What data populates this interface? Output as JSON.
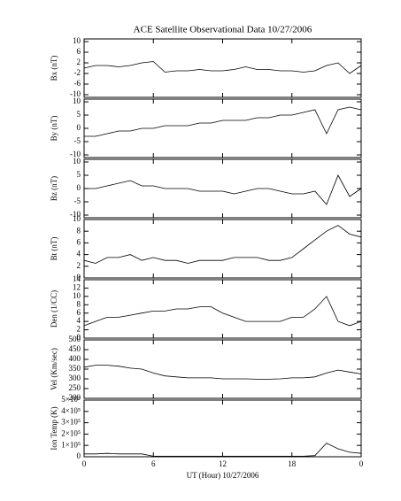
{
  "chart_data": [
    {
      "type": "line",
      "title": "ACE Satellite Observational Data   10/27/2006",
      "ylabel": "Bx (nT)",
      "xlim": [
        0,
        24
      ],
      "xticks": [
        0,
        6,
        12,
        18,
        {
          "value": 24,
          "label": "0"
        }
      ],
      "ylim": [
        -11,
        11
      ],
      "yticks": [
        -10,
        -6,
        -2,
        2,
        6,
        10
      ],
      "x": [
        0,
        1,
        2,
        3,
        4,
        5,
        6,
        7,
        8,
        9,
        10,
        11,
        12,
        13,
        14,
        15,
        16,
        17,
        18,
        19,
        20,
        21,
        22,
        23,
        24
      ],
      "values": [
        0,
        1,
        1,
        0.5,
        1,
        2,
        2.5,
        -1.5,
        -1,
        -1,
        -0.5,
        -1,
        -1,
        -0.5,
        0.5,
        -0.5,
        -0.5,
        -1,
        -1,
        -1.5,
        -1,
        1,
        2,
        -2,
        1
      ]
    },
    {
      "type": "line",
      "ylabel": "By (nT)",
      "xlim": [
        0,
        24
      ],
      "xticks": [
        0,
        6,
        12,
        18,
        {
          "value": 24,
          "label": "0"
        }
      ],
      "ylim": [
        -11,
        11
      ],
      "yticks": [
        -10,
        -5,
        0,
        5,
        10
      ],
      "x": [
        0,
        1,
        2,
        3,
        4,
        5,
        6,
        7,
        8,
        9,
        10,
        11,
        12,
        13,
        14,
        15,
        16,
        17,
        18,
        19,
        20,
        21,
        22,
        23,
        24
      ],
      "values": [
        -3,
        -3,
        -2,
        -1,
        -1,
        0,
        0,
        1,
        1,
        1,
        2,
        2,
        3,
        3,
        3,
        4,
        4,
        5,
        5,
        6,
        7,
        -2,
        7,
        8,
        7
      ]
    },
    {
      "type": "line",
      "ylabel": "Bz (nT)",
      "xlim": [
        0,
        24
      ],
      "xticks": [
        0,
        6,
        12,
        18,
        {
          "value": 24,
          "label": "0"
        }
      ],
      "ylim": [
        -11,
        11
      ],
      "yticks": [
        -10,
        -5,
        0,
        5,
        10
      ],
      "x": [
        0,
        1,
        2,
        3,
        4,
        5,
        6,
        7,
        8,
        9,
        10,
        11,
        12,
        13,
        14,
        15,
        16,
        17,
        18,
        19,
        20,
        21,
        22,
        23,
        24
      ],
      "values": [
        0,
        0,
        1,
        2,
        3,
        1,
        1,
        0,
        0,
        0,
        -1,
        -1,
        -1,
        -2,
        -1,
        0,
        0,
        -1,
        -2,
        -2,
        -1,
        -6,
        5,
        -3,
        0
      ]
    },
    {
      "type": "line",
      "ylabel": "Bt (nT)",
      "xlim": [
        0,
        24
      ],
      "xticks": [
        0,
        6,
        12,
        18,
        {
          "value": 24,
          "label": "0"
        }
      ],
      "ylim": [
        0,
        10
      ],
      "yticks": [
        0,
        2,
        4,
        6,
        8,
        10
      ],
      "x": [
        0,
        1,
        2,
        3,
        4,
        5,
        6,
        7,
        8,
        9,
        10,
        11,
        12,
        13,
        14,
        15,
        16,
        17,
        18,
        19,
        20,
        21,
        22,
        23,
        24
      ],
      "values": [
        3,
        2.5,
        3.5,
        3.5,
        4,
        3,
        3.5,
        3,
        3,
        2.5,
        3,
        3,
        3,
        3.5,
        3.5,
        3.5,
        3,
        3,
        3.5,
        5,
        6.5,
        8,
        9,
        7.5,
        7
      ]
    },
    {
      "type": "line",
      "ylabel": "Den (1/CC)",
      "xlim": [
        0,
        24
      ],
      "xticks": [
        0,
        6,
        12,
        18,
        {
          "value": 24,
          "label": "0"
        }
      ],
      "ylim": [
        0,
        14
      ],
      "yticks": [
        0,
        2,
        4,
        6,
        8,
        10,
        12,
        14
      ],
      "x": [
        0,
        1,
        2,
        3,
        4,
        5,
        6,
        7,
        8,
        9,
        10,
        11,
        12,
        13,
        14,
        15,
        16,
        17,
        18,
        19,
        20,
        21,
        22,
        23,
        24
      ],
      "values": [
        3,
        4,
        5,
        5,
        5.5,
        6,
        6.5,
        6.5,
        7,
        7,
        7.5,
        7.5,
        6,
        5,
        4,
        4,
        4,
        4,
        5,
        5,
        7,
        10,
        4,
        3,
        4
      ]
    },
    {
      "type": "line",
      "ylabel": "Vel (Km/sec)",
      "xlim": [
        0,
        24
      ],
      "xticks": [
        0,
        6,
        12,
        18,
        {
          "value": 24,
          "label": "0"
        }
      ],
      "ylim": [
        200,
        500
      ],
      "yticks": [
        200,
        250,
        300,
        350,
        400,
        450,
        500
      ],
      "x": [
        0,
        1,
        2,
        3,
        4,
        5,
        6,
        7,
        8,
        9,
        10,
        11,
        12,
        13,
        14,
        15,
        16,
        17,
        18,
        19,
        20,
        21,
        22,
        23,
        24
      ],
      "values": [
        360,
        370,
        370,
        365,
        355,
        350,
        330,
        315,
        310,
        305,
        305,
        305,
        300,
        300,
        300,
        298,
        298,
        300,
        305,
        305,
        310,
        330,
        345,
        335,
        325
      ]
    },
    {
      "type": "line",
      "ylabel": "Ion Temp (K)",
      "xlabel": "UT (Hour)   10/27/2006",
      "xlim": [
        0,
        24
      ],
      "xticks": [
        0,
        6,
        12,
        18,
        {
          "value": 24,
          "label": "0"
        }
      ],
      "ylim": [
        0,
        500000
      ],
      "yticks": [
        0,
        {
          "value": 100000,
          "label": "1×10⁵"
        },
        {
          "value": 200000,
          "label": "2×10⁵"
        },
        {
          "value": 300000,
          "label": "3×10⁵"
        },
        {
          "value": 400000,
          "label": "4×10⁵"
        },
        {
          "value": 500000,
          "label": "5×10⁵"
        }
      ],
      "x": [
        0,
        1,
        2,
        3,
        4,
        5,
        6,
        7,
        8,
        9,
        10,
        11,
        12,
        13,
        14,
        15,
        16,
        17,
        18,
        19,
        20,
        21,
        22,
        23,
        24
      ],
      "values": [
        25000,
        25000,
        30000,
        25000,
        25000,
        25000,
        5000,
        5000,
        5000,
        5000,
        5000,
        5000,
        5000,
        5000,
        5000,
        5000,
        5000,
        5000,
        5000,
        5000,
        10000,
        120000,
        70000,
        40000,
        30000
      ]
    }
  ]
}
